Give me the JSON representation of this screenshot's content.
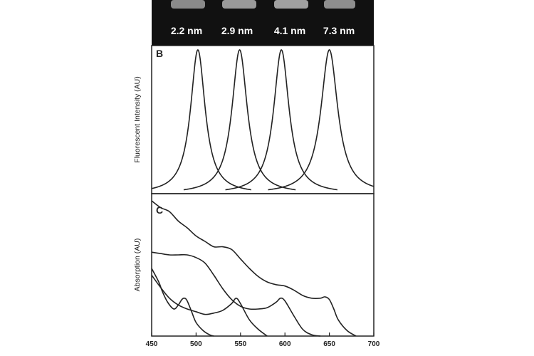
{
  "figure": {
    "photo_strip": {
      "sizes": [
        "2.2 nm",
        "2.9 nm",
        "4.1 nm",
        "7.3 nm"
      ],
      "background": "#111111",
      "label_color": "#ffffff"
    },
    "ink": "#222222"
  },
  "chart_data": [
    {
      "panel": "B",
      "type": "line",
      "title": "",
      "xlabel": "",
      "ylabel": "Fluorescent Intensity (AU)",
      "xlim": [
        450,
        700
      ],
      "ylim": [
        0,
        1
      ],
      "x_ticks": [],
      "series": [
        {
          "peak_x": 502,
          "fwhm": 20,
          "peak_y": 1.0
        },
        {
          "peak_x": 549,
          "fwhm": 21,
          "peak_y": 1.0
        },
        {
          "peak_x": 596,
          "fwhm": 21,
          "peak_y": 1.0
        },
        {
          "peak_x": 650,
          "fwhm": 23,
          "peak_y": 1.0
        }
      ]
    },
    {
      "panel": "C",
      "type": "line",
      "title": "",
      "xlabel": "",
      "ylabel": "Absorption (AU)",
      "xlim": [
        450,
        700
      ],
      "ylim": [
        0,
        1
      ],
      "x_ticks": [
        {
          "value": 450,
          "label": "450"
        },
        {
          "value": 500,
          "label": "500"
        },
        {
          "value": 550,
          "label": "550"
        },
        {
          "value": 600,
          "label": "600"
        },
        {
          "value": 650,
          "label": "650"
        },
        {
          "value": 700,
          "label": "700"
        }
      ],
      "series": [
        {
          "x": [
            450,
            458,
            462,
            468,
            475,
            480,
            484,
            487,
            490,
            495,
            500,
            508,
            515,
            520
          ],
          "y": [
            0.5,
            0.4,
            0.33,
            0.25,
            0.2,
            0.23,
            0.27,
            0.28,
            0.26,
            0.18,
            0.1,
            0.04,
            0.01,
            0.0
          ]
        },
        {
          "x": [
            450,
            460,
            470,
            480,
            490,
            500,
            510,
            520,
            530,
            540,
            545,
            550,
            560,
            570,
            580
          ],
          "y": [
            0.45,
            0.36,
            0.28,
            0.23,
            0.2,
            0.18,
            0.16,
            0.17,
            0.19,
            0.24,
            0.28,
            0.24,
            0.12,
            0.05,
            0.0
          ]
        },
        {
          "x": [
            450,
            460,
            470,
            480,
            490,
            500,
            510,
            520,
            530,
            540,
            550,
            560,
            570,
            580,
            590,
            595,
            600,
            610,
            620,
            630,
            640
          ],
          "y": [
            0.62,
            0.61,
            0.6,
            0.6,
            0.6,
            0.58,
            0.54,
            0.45,
            0.35,
            0.27,
            0.22,
            0.2,
            0.2,
            0.21,
            0.25,
            0.28,
            0.26,
            0.15,
            0.05,
            0.01,
            0.0
          ]
        },
        {
          "x": [
            450,
            460,
            470,
            480,
            490,
            500,
            510,
            520,
            530,
            540,
            550,
            560,
            570,
            580,
            590,
            600,
            610,
            620,
            630,
            640,
            645,
            650,
            655,
            660,
            670,
            680
          ],
          "y": [
            1.0,
            0.95,
            0.92,
            0.85,
            0.8,
            0.74,
            0.7,
            0.66,
            0.66,
            0.64,
            0.57,
            0.5,
            0.44,
            0.4,
            0.38,
            0.37,
            0.34,
            0.3,
            0.28,
            0.28,
            0.29,
            0.27,
            0.2,
            0.12,
            0.04,
            0.0
          ]
        }
      ]
    }
  ]
}
